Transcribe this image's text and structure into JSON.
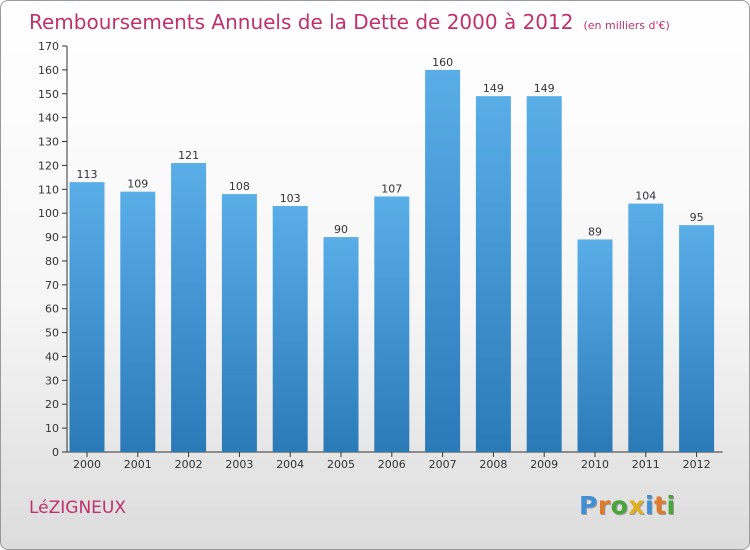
{
  "chart_data": {
    "type": "bar",
    "title": "Remboursements Annuels de la Dette de 2000 à 2012",
    "subtitle": "(en milliers d'€)",
    "categories": [
      "2000",
      "2001",
      "2002",
      "2003",
      "2004",
      "2005",
      "2006",
      "2007",
      "2008",
      "2009",
      "2010",
      "2011",
      "2012"
    ],
    "values": [
      113,
      109,
      121,
      108,
      103,
      90,
      107,
      160,
      149,
      149,
      89,
      104,
      95
    ],
    "ylim": [
      0,
      170
    ],
    "yticks": [
      0,
      10,
      20,
      30,
      40,
      50,
      60,
      70,
      80,
      90,
      100,
      110,
      120,
      130,
      140,
      150,
      160,
      170
    ],
    "grid": false,
    "data_labels": true,
    "colors": {
      "bar_light": "#5aaee8",
      "bar_dark": "#2a7ab8",
      "title": "#c0306e"
    }
  },
  "commune": "LéZIGNEUX",
  "logo": {
    "letters": [
      {
        "char": "P",
        "color": "#3f8fd6"
      },
      {
        "char": "r",
        "color": "#e07a2b"
      },
      {
        "char": "o",
        "color": "#4aa53a"
      },
      {
        "char": "x",
        "color": "#e0b020"
      },
      {
        "char": "i",
        "color": "#3f8fd6"
      },
      {
        "char": "t",
        "color": "#e07a2b"
      },
      {
        "char": "i",
        "color": "#4aa53a"
      }
    ]
  }
}
